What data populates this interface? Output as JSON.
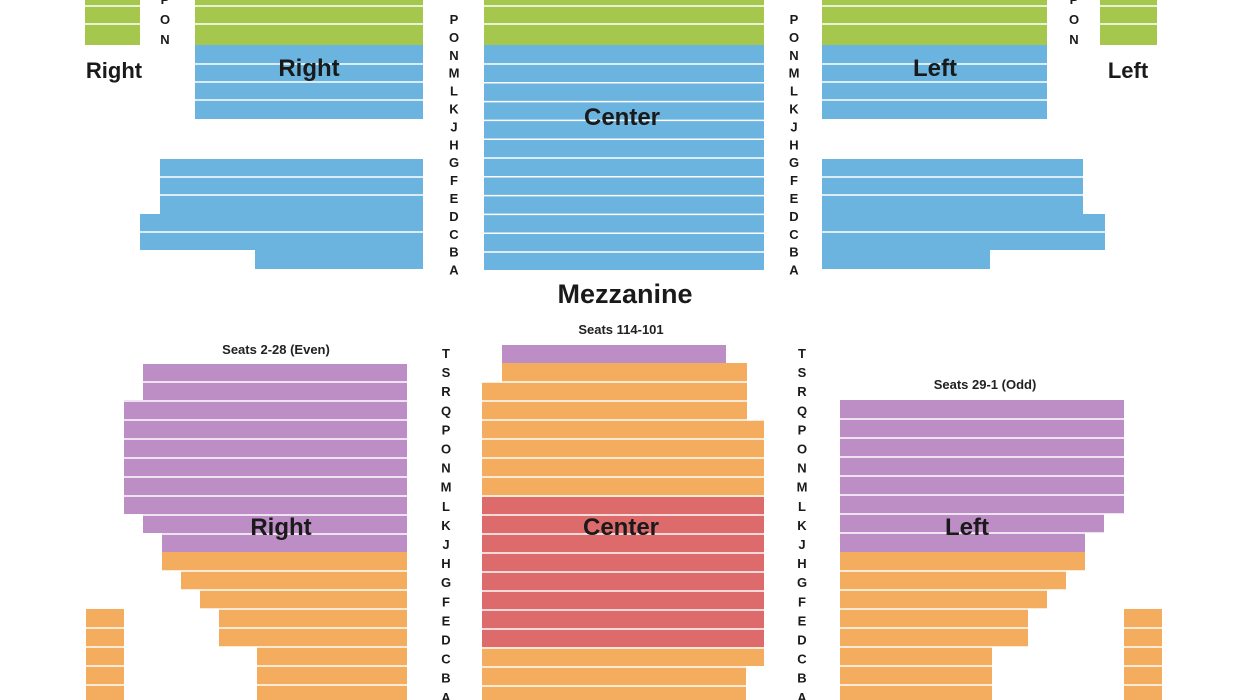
{
  "colors": {
    "green": "#a6c74e",
    "blue": "#6ab4df",
    "purple": "#bd8dc5",
    "orange": "#f4ad5e",
    "red": "#dd6b6b",
    "row_line": "#ffffff"
  },
  "mezzanine": {
    "title": "Mezzanine",
    "label_far_right": "Right",
    "label_right": "Right",
    "label_center": "Center",
    "label_left": "Left",
    "label_far_left": "Left",
    "rows_left_aisle": [
      "P",
      "O",
      "N",
      "M",
      "L",
      "K",
      "J",
      "H",
      "G",
      "F",
      "E",
      "D",
      "C",
      "B",
      "A"
    ],
    "rows_right_aisle": [
      "P",
      "O",
      "N",
      "M",
      "L",
      "K",
      "J",
      "H",
      "G",
      "F",
      "E",
      "D",
      "C",
      "B",
      "A"
    ],
    "rows_far_left": [
      "P",
      "O",
      "N"
    ],
    "rows_far_right": [
      "P",
      "O",
      "N"
    ]
  },
  "orchestra": {
    "seats_center": "Seats 114-101",
    "seats_right": "Seats 2-28 (Even)",
    "seats_left": "Seats 29-1 (Odd)",
    "label_right": "Right",
    "label_center": "Center",
    "label_left": "Left",
    "rows_left_aisle": [
      "T",
      "S",
      "R",
      "Q",
      "P",
      "O",
      "N",
      "M",
      "L",
      "K",
      "J",
      "H",
      "G",
      "F",
      "E",
      "D",
      "C",
      "B",
      "A"
    ],
    "rows_right_aisle": [
      "T",
      "S",
      "R",
      "Q",
      "P",
      "O",
      "N",
      "M",
      "L",
      "K",
      "J",
      "H",
      "G",
      "F",
      "E",
      "D",
      "C",
      "B",
      "A"
    ]
  }
}
